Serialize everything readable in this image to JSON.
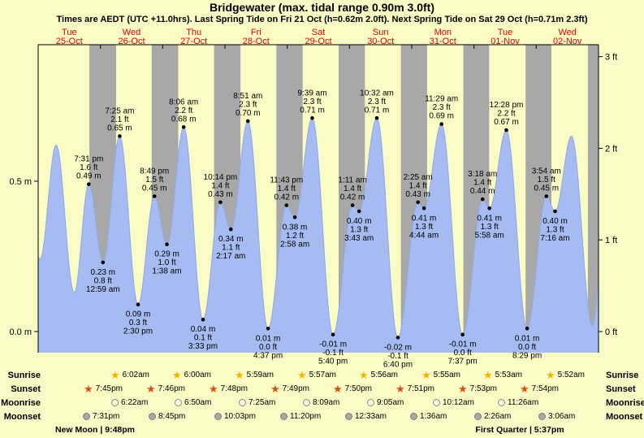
{
  "title": "Bridgewater (max. tidal range 0.90m 3.0ft)",
  "subtitle": "Times are AEDT (UTC +11.0hrs). Last Spring Tide on Fri 21 Oct (h=0.62m 2.0ft). Next Spring Tide on Sat 29 Oct (h=0.71m 2.3ft)",
  "colors": {
    "background": "#fbfbc6",
    "night_band": "#a8a8a8",
    "tide_fill": "#a6bbf2",
    "tide_stroke": "#8fa8e8",
    "day_label": "#e00000",
    "text": "#000000"
  },
  "days": [
    {
      "dow": "Tue",
      "date": "25-Oct"
    },
    {
      "dow": "Wed",
      "date": "26-Oct"
    },
    {
      "dow": "Thu",
      "date": "27-Oct"
    },
    {
      "dow": "Fri",
      "date": "28-Oct"
    },
    {
      "dow": "Sat",
      "date": "29-Oct"
    },
    {
      "dow": "Sun",
      "date": "30-Oct"
    },
    {
      "dow": "Mon",
      "date": "31-Oct"
    },
    {
      "dow": "Tue",
      "date": "01-Nov"
    },
    {
      "dow": "Wed",
      "date": "02-Nov"
    }
  ],
  "axis": {
    "left": [
      {
        "label": "0.5 m",
        "meters": 0.5
      },
      {
        "label": "0.0 m",
        "meters": 0.0
      }
    ],
    "right": [
      {
        "label": "3 ft",
        "feet": 3
      },
      {
        "label": "2 ft",
        "feet": 2
      },
      {
        "label": "1 ft",
        "feet": 1
      },
      {
        "label": "0 ft",
        "feet": 0
      }
    ]
  },
  "chart_data": {
    "type": "area",
    "title": "Bridgewater (max. tidal range 0.90m 3.0ft)",
    "x_unit": "hours from Tue 25-Oct 00:00 AEDT",
    "y_unit": "meters",
    "y_range": [
      -0.07,
      0.95
    ],
    "legend": "blue area = tide height, gray bands = night (sunset to sunrise)",
    "extremes": [
      {
        "t": -3.5,
        "h": 0.45,
        "kind": "high",
        "lines": null
      },
      {
        "t": 0.667,
        "h": 0.24,
        "kind": "low",
        "lines": null
      },
      {
        "t": 6.917,
        "h": 0.62,
        "kind": "high",
        "lines": null
      },
      {
        "t": 13.917,
        "h": 0.13,
        "kind": "low",
        "lines": null
      },
      {
        "t": 19.517,
        "h": 0.49,
        "kind": "high",
        "lines": [
          "7:31 pm",
          "1.6 ft",
          "0.49 m"
        ]
      },
      {
        "t": 24.983,
        "h": 0.23,
        "kind": "low",
        "lines": [
          "0.23 m",
          "0.8 ft",
          "12:59 am"
        ]
      },
      {
        "t": 31.417,
        "h": 0.65,
        "kind": "high",
        "lines": [
          "7:25 am",
          "2.1 ft",
          "0.65 m"
        ]
      },
      {
        "t": 38.5,
        "h": 0.09,
        "kind": "low",
        "lines": [
          "0.09 m",
          "0.3 ft",
          "2:30 pm"
        ]
      },
      {
        "t": 44.817,
        "h": 0.45,
        "kind": "high",
        "lines": [
          "8:49 pm",
          "1.5 ft",
          "0.45 m"
        ]
      },
      {
        "t": 49.633,
        "h": 0.29,
        "kind": "low",
        "lines": [
          "0.29 m",
          "1.0 ft",
          "1:38 am"
        ]
      },
      {
        "t": 56.1,
        "h": 0.68,
        "kind": "high",
        "lines": [
          "8:06 am",
          "2.2 ft",
          "0.68 m"
        ]
      },
      {
        "t": 63.55,
        "h": 0.04,
        "kind": "low",
        "lines": [
          "0.04 m",
          "0.1 ft",
          "3:33 pm"
        ]
      },
      {
        "t": 70.233,
        "h": 0.43,
        "kind": "high",
        "lines": [
          "10:14 pm",
          "1.4 ft",
          "0.43 m"
        ]
      },
      {
        "t": 74.283,
        "h": 0.34,
        "kind": "low",
        "lines": [
          "0.34 m",
          "1.1 ft",
          "2:17 am"
        ]
      },
      {
        "t": 80.85,
        "h": 0.7,
        "kind": "high",
        "lines": [
          "8:51 am",
          "2.3 ft",
          "0.70 m"
        ]
      },
      {
        "t": 88.617,
        "h": 0.01,
        "kind": "low",
        "lines": [
          "0.01 m",
          "0.0 ft",
          "4:37 pm"
        ]
      },
      {
        "t": 95.717,
        "h": 0.42,
        "kind": "high",
        "lines": [
          "11:43 pm",
          "1.4 ft",
          "0.42 m"
        ]
      },
      {
        "t": 98.967,
        "h": 0.38,
        "kind": "low",
        "lines": [
          "0.38 m",
          "1.2 ft",
          "2:58 am"
        ]
      },
      {
        "t": 105.65,
        "h": 0.71,
        "kind": "high",
        "lines": [
          "9:39 am",
          "2.3 ft",
          "0.71 m"
        ]
      },
      {
        "t": 113.667,
        "h": -0.01,
        "kind": "low",
        "lines": [
          "-0.01 m",
          "-0.1 ft",
          "5:40 pm"
        ]
      },
      {
        "t": 121.183,
        "h": 0.42,
        "kind": "high",
        "lines": [
          "1:11 am",
          "1.4 ft",
          "0.42 m"
        ]
      },
      {
        "t": 123.717,
        "h": 0.4,
        "kind": "low",
        "lines": [
          "0.40 m",
          "1.3 ft",
          "3:43 am"
        ]
      },
      {
        "t": 130.533,
        "h": 0.71,
        "kind": "high",
        "lines": [
          "10:32 am",
          "2.3 ft",
          "0.71 m"
        ]
      },
      {
        "t": 138.667,
        "h": -0.02,
        "kind": "low",
        "lines": [
          "-0.02 m",
          "-0.1 ft",
          "6:40 pm"
        ]
      },
      {
        "t": 146.417,
        "h": 0.43,
        "kind": "high",
        "lines": [
          "2:25 am",
          "1.4 ft",
          "0.43 m"
        ]
      },
      {
        "t": 148.733,
        "h": 0.41,
        "kind": "low",
        "lines": [
          "0.41 m",
          "1.3 ft",
          "4:44 am"
        ]
      },
      {
        "t": 155.483,
        "h": 0.69,
        "kind": "high",
        "lines": [
          "11:29 am",
          "2.3 ft",
          "0.69 m"
        ]
      },
      {
        "t": 163.617,
        "h": -0.01,
        "kind": "low",
        "lines": [
          "-0.01 m",
          "0.0 ft",
          "7:37 pm"
        ]
      },
      {
        "t": 171.3,
        "h": 0.44,
        "kind": "high",
        "lines": [
          "3:18 am",
          "1.4 ft",
          "0.44 m"
        ]
      },
      {
        "t": 173.967,
        "h": 0.41,
        "kind": "low",
        "lines": [
          "0.41 m",
          "1.3 ft",
          "5:58 am"
        ]
      },
      {
        "t": 180.467,
        "h": 0.67,
        "kind": "high",
        "lines": [
          "12:28 pm",
          "2.2 ft",
          "0.67 m"
        ]
      },
      {
        "t": 188.483,
        "h": 0.01,
        "kind": "low",
        "lines": [
          "0.01 m",
          "0.0 ft",
          "8:29 pm"
        ]
      },
      {
        "t": 195.9,
        "h": 0.45,
        "kind": "high",
        "lines": [
          "3:54 am",
          "1.5 ft",
          "0.45 m"
        ]
      },
      {
        "t": 199.267,
        "h": 0.4,
        "kind": "low",
        "lines": [
          "0.40 m",
          "1.3 ft",
          "7:16 am"
        ]
      },
      {
        "t": 205.6,
        "h": 0.65,
        "kind": "high",
        "lines": null
      },
      {
        "t": 213.6,
        "h": 0.02,
        "kind": "low",
        "lines": null
      },
      {
        "t": 219.0,
        "h": 0.4,
        "kind": "high",
        "lines": null
      }
    ],
    "night_bands": [
      {
        "start": 19.75,
        "end": 30.033
      },
      {
        "start": 43.767,
        "end": 54.0
      },
      {
        "start": 67.8,
        "end": 77.983
      },
      {
        "start": 91.817,
        "end": 101.95
      },
      {
        "start": 115.833,
        "end": 125.933
      },
      {
        "start": 139.85,
        "end": 149.917
      },
      {
        "start": 163.883,
        "end": 173.883
      },
      {
        "start": 187.9,
        "end": 197.867
      },
      {
        "start": 211.917,
        "end": 216.1
      }
    ]
  },
  "almanac": {
    "rows": [
      {
        "label": "Sunrise",
        "icon": "sunrise-star",
        "events": [
          {
            "t": 30.033,
            "time": "6:02am"
          },
          {
            "t": 54.0,
            "time": "6:00am"
          },
          {
            "t": 77.983,
            "time": "5:59am"
          },
          {
            "t": 101.95,
            "time": "5:57am"
          },
          {
            "t": 125.933,
            "time": "5:56am"
          },
          {
            "t": 149.917,
            "time": "5:55am"
          },
          {
            "t": 173.883,
            "time": "5:53am"
          },
          {
            "t": 197.867,
            "time": "5:52am"
          }
        ]
      },
      {
        "label": "Sunset",
        "icon": "sunset-star",
        "events": [
          {
            "t": 19.75,
            "time": "7:45pm"
          },
          {
            "t": 43.767,
            "time": "7:46pm"
          },
          {
            "t": 67.8,
            "time": "7:48pm"
          },
          {
            "t": 91.817,
            "time": "7:49pm"
          },
          {
            "t": 115.833,
            "time": "7:50pm"
          },
          {
            "t": 139.85,
            "time": "7:51pm"
          },
          {
            "t": 163.883,
            "time": "7:53pm"
          },
          {
            "t": 187.9,
            "time": "7:54pm"
          }
        ]
      },
      {
        "label": "Moonrise",
        "icon": "moonrise-circle",
        "events": [
          {
            "t": 30.367,
            "time": "6:22am"
          },
          {
            "t": 54.833,
            "time": "6:50am"
          },
          {
            "t": 79.417,
            "time": "7:25am"
          },
          {
            "t": 104.15,
            "time": "8:09am"
          },
          {
            "t": 129.083,
            "time": "9:05am"
          },
          {
            "t": 154.2,
            "time": "10:12am"
          },
          {
            "t": 179.433,
            "time": "11:26am"
          }
        ]
      },
      {
        "label": "Moonset",
        "icon": "moonset-circle",
        "events": [
          {
            "t": 19.517,
            "time": "7:31pm"
          },
          {
            "t": 44.75,
            "time": "8:45pm"
          },
          {
            "t": 70.05,
            "time": "10:03pm"
          },
          {
            "t": 95.333,
            "time": "11:20pm"
          },
          {
            "t": 120.55,
            "time": "12:33am"
          },
          {
            "t": 145.6,
            "time": "1:36am"
          },
          {
            "t": 170.433,
            "time": "2:26am"
          },
          {
            "t": 195.1,
            "time": "3:06am"
          }
        ]
      }
    ],
    "phases": [
      {
        "t": 21.8,
        "text": "New Moon | 9:48pm"
      },
      {
        "t": 185.617,
        "text": "First Quarter | 5:37pm"
      }
    ]
  }
}
